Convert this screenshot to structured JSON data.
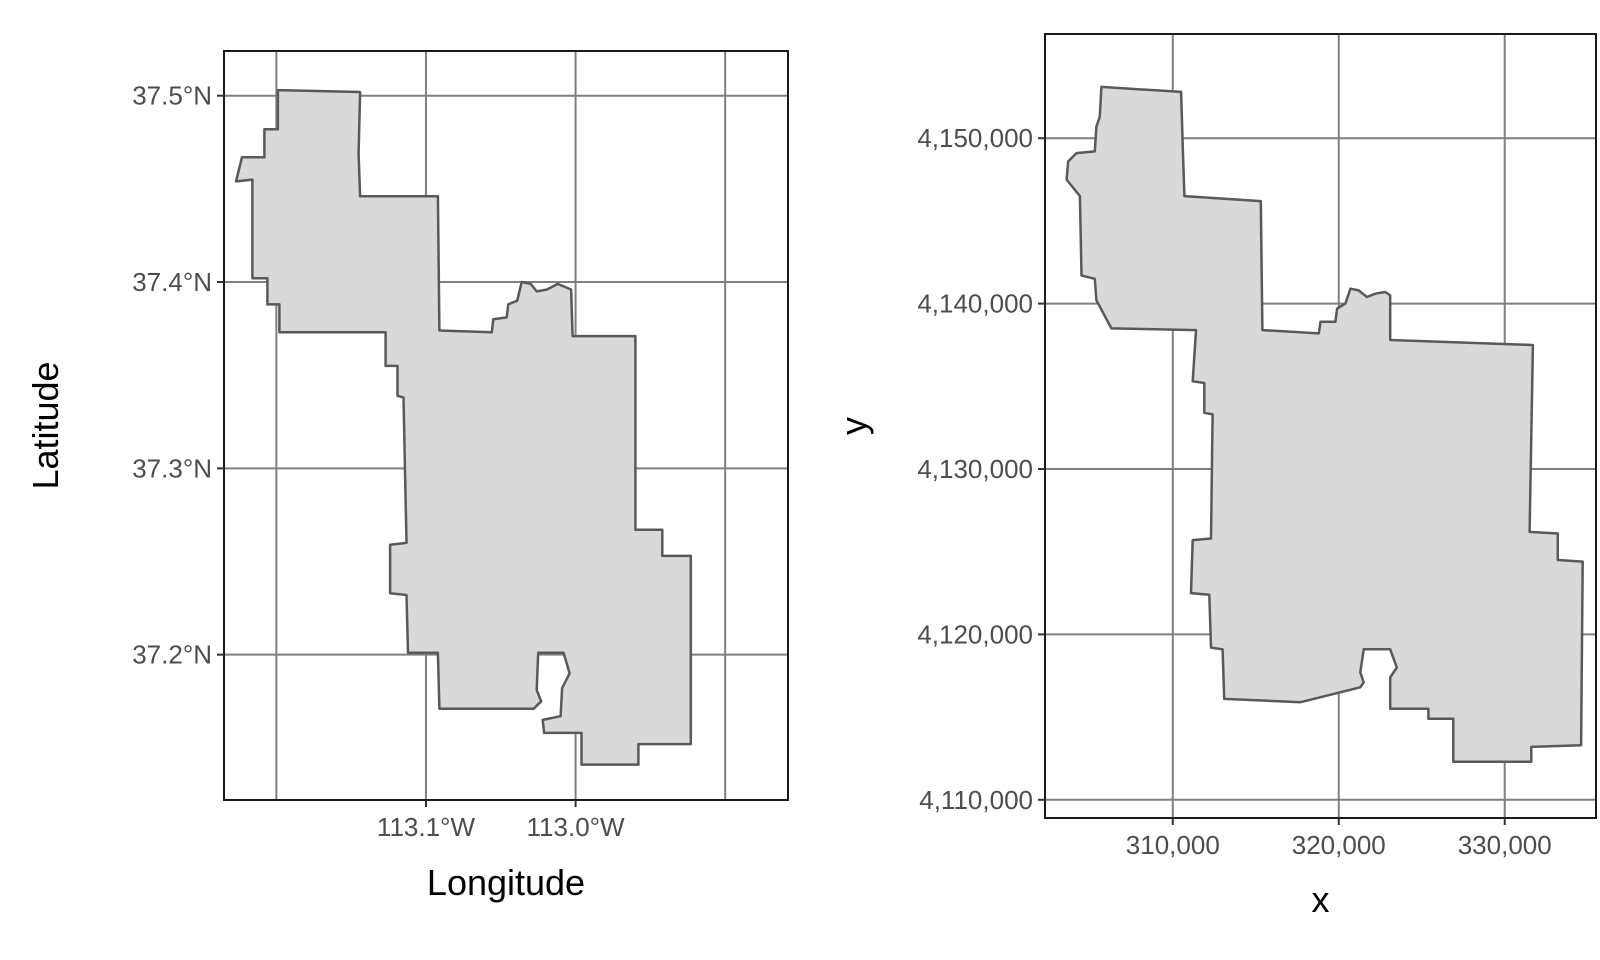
{
  "chart_data": [
    {
      "type": "map",
      "coordinate_system": "geographic (degrees)",
      "xlabel": "Longitude",
      "ylabel": "Latitude",
      "x_ticks": [
        {
          "value": -113.1,
          "label": "113.1°W"
        },
        {
          "value": -113.0,
          "label": "113.0°W"
        }
      ],
      "x_grid_values": [
        -113.2,
        -113.1,
        -113.0,
        -112.9
      ],
      "y_ticks": [
        {
          "value": 37.2,
          "label": "37.2°N"
        },
        {
          "value": 37.3,
          "label": "37.3°N"
        },
        {
          "value": 37.4,
          "label": "37.4°N"
        },
        {
          "value": 37.5,
          "label": "37.5°N"
        }
      ],
      "xlim": [
        -113.235,
        -112.858
      ],
      "ylim": [
        37.122,
        37.524
      ],
      "grid": true,
      "fill_color": "#d9d9d9",
      "outline_color": "#595959",
      "region": {
        "outer": [
          [
            -113.199,
            37.503
          ],
          [
            -113.144,
            37.502
          ],
          [
            -113.145,
            37.469
          ],
          [
            -113.144,
            37.446
          ],
          [
            -113.092,
            37.446
          ],
          [
            -113.091,
            37.374
          ],
          [
            -113.056,
            37.373
          ],
          [
            -113.055,
            37.38
          ],
          [
            -113.046,
            37.381
          ],
          [
            -113.045,
            37.388
          ],
          [
            -113.039,
            37.39
          ],
          [
            -113.036,
            37.4
          ],
          [
            -113.03,
            37.399
          ],
          [
            -113.026,
            37.395
          ],
          [
            -113.019,
            37.396
          ],
          [
            -113.012,
            37.399
          ],
          [
            -113.003,
            37.396
          ],
          [
            -113.002,
            37.371
          ],
          [
            -112.96,
            37.371
          ],
          [
            -112.96,
            37.267
          ],
          [
            -112.942,
            37.267
          ],
          [
            -112.942,
            37.253
          ],
          [
            -112.923,
            37.253
          ],
          [
            -112.923,
            37.152
          ],
          [
            -112.958,
            37.152
          ],
          [
            -112.958,
            37.141
          ],
          [
            -112.996,
            37.141
          ],
          [
            -112.996,
            37.158
          ],
          [
            -113.021,
            37.158
          ],
          [
            -113.022,
            37.165
          ],
          [
            -113.01,
            37.167
          ],
          [
            -113.009,
            37.182
          ],
          [
            -113.004,
            37.19
          ],
          [
            -113.008,
            37.201
          ],
          [
            -113.025,
            37.201
          ],
          [
            -113.026,
            37.181
          ],
          [
            -113.023,
            37.175
          ],
          [
            -113.028,
            37.171
          ],
          [
            -113.091,
            37.171
          ],
          [
            -113.092,
            37.201
          ],
          [
            -113.112,
            37.201
          ],
          [
            -113.113,
            37.232
          ],
          [
            -113.124,
            37.233
          ],
          [
            -113.124,
            37.259
          ],
          [
            -113.113,
            37.26
          ],
          [
            -113.115,
            37.338
          ],
          [
            -113.119,
            37.339
          ],
          [
            -113.119,
            37.355
          ],
          [
            -113.127,
            37.355
          ],
          [
            -113.127,
            37.373
          ],
          [
            -113.198,
            37.373
          ],
          [
            -113.198,
            37.388
          ],
          [
            -113.206,
            37.388
          ],
          [
            -113.206,
            37.402
          ],
          [
            -113.216,
            37.402
          ],
          [
            -113.216,
            37.455
          ],
          [
            -113.227,
            37.454
          ],
          [
            -113.223,
            37.467
          ],
          [
            -113.208,
            37.467
          ],
          [
            -113.208,
            37.482
          ],
          [
            -113.199,
            37.482
          ],
          [
            -113.199,
            37.503
          ]
        ]
      }
    },
    {
      "type": "map",
      "coordinate_system": "projected (meters)",
      "xlabel": "x",
      "ylabel": "y",
      "x_ticks": [
        {
          "value": 310000,
          "label": "310,000"
        },
        {
          "value": 320000,
          "label": "320,000"
        },
        {
          "value": 330000,
          "label": "330,000"
        }
      ],
      "y_ticks": [
        {
          "value": 4110000,
          "label": "4,110,000"
        },
        {
          "value": 4120000,
          "label": "4,120,000"
        },
        {
          "value": 4130000,
          "label": "4,130,000"
        },
        {
          "value": 4140000,
          "label": "4,140,000"
        },
        {
          "value": 4150000,
          "label": "4,150,000"
        }
      ],
      "xlim": [
        302300,
        335500
      ],
      "ylim": [
        4108900,
        4156300
      ],
      "grid": true,
      "fill_color": "#d9d9d9",
      "outline_color": "#595959",
      "region": {
        "outer": [
          [
            305700,
            4153100
          ],
          [
            310500,
            4152800
          ],
          [
            310600,
            4149400
          ],
          [
            310700,
            4146500
          ],
          [
            315300,
            4146200
          ],
          [
            315400,
            4138400
          ],
          [
            318800,
            4138200
          ],
          [
            318900,
            4138900
          ],
          [
            319800,
            4138900
          ],
          [
            319900,
            4139700
          ],
          [
            320400,
            4140000
          ],
          [
            320700,
            4140900
          ],
          [
            321200,
            4140800
          ],
          [
            321700,
            4140400
          ],
          [
            322200,
            4140600
          ],
          [
            322800,
            4140700
          ],
          [
            323100,
            4140500
          ],
          [
            323100,
            4137800
          ],
          [
            331700,
            4137500
          ],
          [
            331500,
            4126200
          ],
          [
            333200,
            4126100
          ],
          [
            333200,
            4124500
          ],
          [
            334700,
            4124400
          ],
          [
            334600,
            4113300
          ],
          [
            331600,
            4113200
          ],
          [
            331600,
            4112300
          ],
          [
            326900,
            4112300
          ],
          [
            326900,
            4114900
          ],
          [
            325400,
            4114900
          ],
          [
            325400,
            4115500
          ],
          [
            323100,
            4115500
          ],
          [
            323100,
            4117400
          ],
          [
            323500,
            4118000
          ],
          [
            323100,
            4119100
          ],
          [
            321500,
            4119100
          ],
          [
            321300,
            4117700
          ],
          [
            321500,
            4117100
          ],
          [
            321300,
            4116800
          ],
          [
            317700,
            4115900
          ],
          [
            313100,
            4116100
          ],
          [
            313000,
            4119100
          ],
          [
            312300,
            4119200
          ],
          [
            312200,
            4122400
          ],
          [
            311100,
            4122500
          ],
          [
            311200,
            4125700
          ],
          [
            312300,
            4125800
          ],
          [
            312400,
            4133300
          ],
          [
            311900,
            4133400
          ],
          [
            311900,
            4135200
          ],
          [
            311200,
            4135300
          ],
          [
            311400,
            4138400
          ],
          [
            306300,
            4138500
          ],
          [
            305400,
            4140200
          ],
          [
            305300,
            4141500
          ],
          [
            304500,
            4141700
          ],
          [
            304400,
            4146500
          ],
          [
            303600,
            4147500
          ],
          [
            303700,
            4148600
          ],
          [
            304200,
            4149100
          ],
          [
            305300,
            4149200
          ],
          [
            305400,
            4150700
          ],
          [
            305600,
            4151300
          ],
          [
            305700,
            4153100
          ]
        ]
      }
    }
  ]
}
